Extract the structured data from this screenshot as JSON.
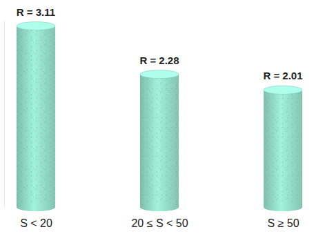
{
  "chart_data": {
    "type": "bar",
    "categories": [
      "S < 20",
      "20 ≤ S < 50",
      "S ≥ 50"
    ],
    "values": [
      3.11,
      2.28,
      2.01
    ],
    "value_labels": [
      "R = 3.11",
      "R = 2.28",
      "R = 2.01"
    ],
    "data_labels": true,
    "color": "#8fd6c2",
    "ylim": [
      0,
      3.2
    ],
    "tick_labels": false
  }
}
